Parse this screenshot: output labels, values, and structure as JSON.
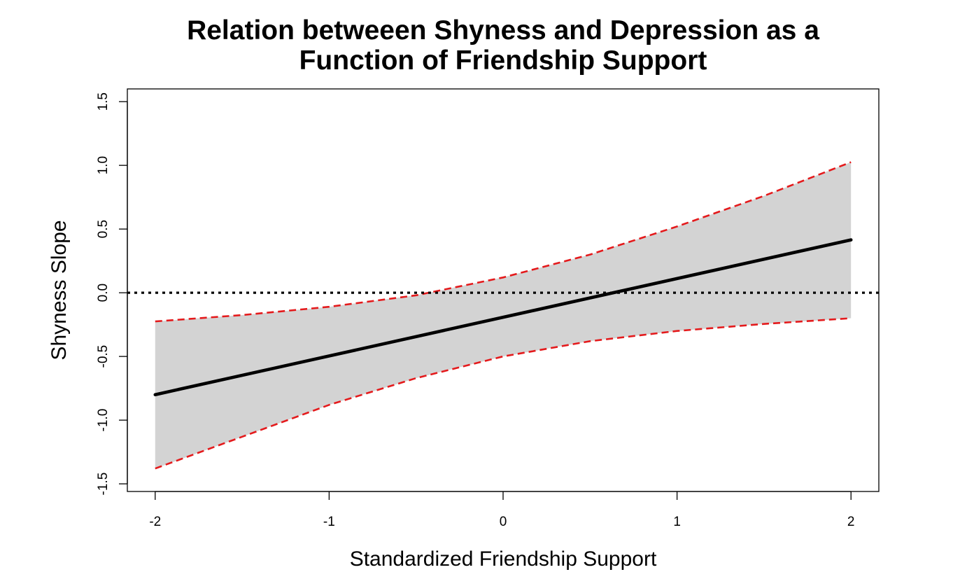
{
  "chart_data": {
    "type": "line",
    "title": "Relation betweeen Shyness and Depression as a\nFunction of Friendship Support",
    "xlabel": "Standardized Friendship Support",
    "ylabel": "Shyness Slope",
    "xlim": [
      -2.16,
      2.16
    ],
    "ylim": [
      -1.56,
      1.6
    ],
    "x_ticks": [
      -2,
      -1,
      0,
      1,
      2
    ],
    "x_tick_labels": [
      "-2",
      "-1",
      "0",
      "1",
      "2"
    ],
    "y_ticks": [
      -1.5,
      -1.0,
      -0.5,
      0.0,
      0.5,
      1.0,
      1.5
    ],
    "y_tick_labels": [
      "-1.5",
      "-1.0",
      "-0.5",
      "0.0",
      "0.5",
      "1.0",
      "1.5"
    ],
    "grid": false,
    "reference_line": {
      "y": 0.0,
      "style": "dotted",
      "color": "#000000"
    },
    "band": {
      "x": [
        -2,
        -1.5,
        -1,
        -0.5,
        0,
        0.5,
        1,
        1.5,
        2
      ],
      "lower": [
        -1.38,
        -1.13,
        -0.88,
        -0.67,
        -0.5,
        -0.38,
        -0.3,
        -0.245,
        -0.2
      ],
      "upper": [
        -0.225,
        -0.175,
        -0.11,
        -0.02,
        0.12,
        0.3,
        0.52,
        0.76,
        1.025
      ],
      "fill_color": "#d3d3d3",
      "edge_color": "#e41a1c",
      "edge_style": "dashed"
    },
    "series": [
      {
        "x": [
          -2,
          2
        ],
        "values": [
          -0.8,
          0.415
        ],
        "color": "#000000"
      }
    ]
  }
}
